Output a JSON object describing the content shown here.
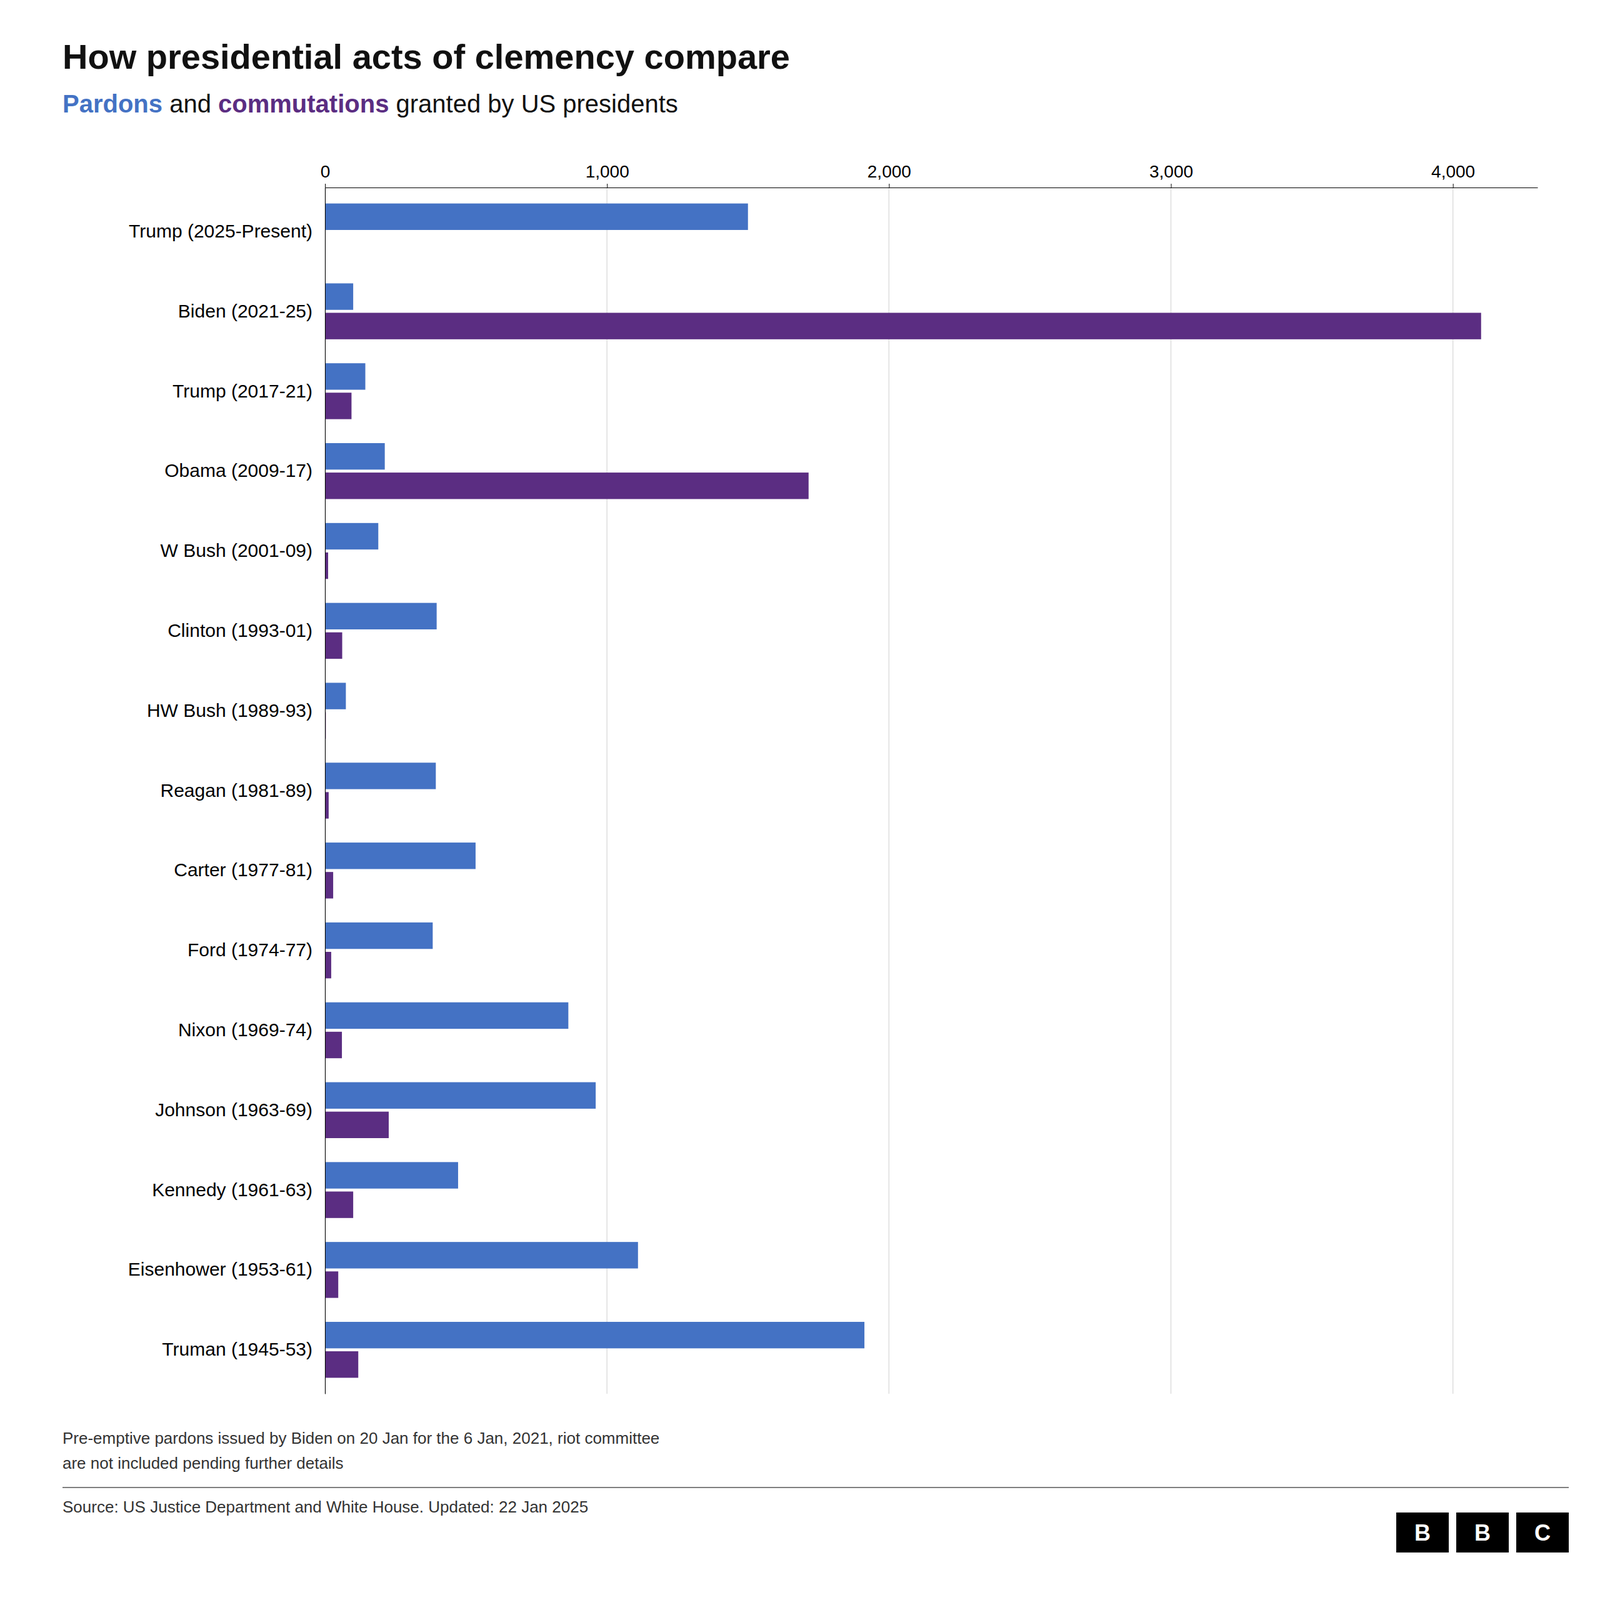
{
  "chart_data": {
    "type": "bar",
    "orientation": "horizontal",
    "title": "How presidential acts of clemency compare",
    "subtitle": [
      "Pardons",
      " and ",
      "commutations",
      " granted by US presidents"
    ],
    "categories": [
      "Trump (2025-Present)",
      "Biden (2021-25)",
      "Trump (2017-21)",
      "Obama (2009-17)",
      "W Bush (2001-09)",
      "Clinton (1993-01)",
      "HW Bush (1989-93)",
      "Reagan (1981-89)",
      "Carter (1977-81)",
      "Ford (1974-77)",
      "Nixon (1969-74)",
      "Johnson (1963-69)",
      "Kennedy (1961-63)",
      "Eisenhower (1953-61)",
      "Truman (1945-53)"
    ],
    "series": [
      {
        "name": "Pardons",
        "color": "#4472C4",
        "values": [
          1500,
          100,
          143,
          212,
          189,
          396,
          74,
          393,
          534,
          382,
          863,
          960,
          472,
          1110,
          1913
        ]
      },
      {
        "name": "commutations",
        "color": "#5B2D82",
        "values": [
          0,
          4100,
          94,
          1715,
          11,
          61,
          3,
          13,
          29,
          22,
          60,
          226,
          100,
          47,
          118
        ]
      }
    ],
    "xlim": [
      0,
      4300
    ],
    "xticks": [
      0,
      {
        "value": 1000,
        "label": "1,000"
      },
      {
        "value": 2000,
        "label": "2,000"
      },
      {
        "value": 3000,
        "label": "3,000"
      },
      {
        "value": 4000,
        "label": "4,000"
      }
    ],
    "grid": true,
    "annotations": [
      "Pre-emptive pardons issued by Biden on 20 Jan for the 6 Jan, 2021, riot committee",
      "are not included pending further details",
      "Source: US Justice Department and White House. Updated: 22 Jan 2025"
    ],
    "logo": "BBC"
  }
}
